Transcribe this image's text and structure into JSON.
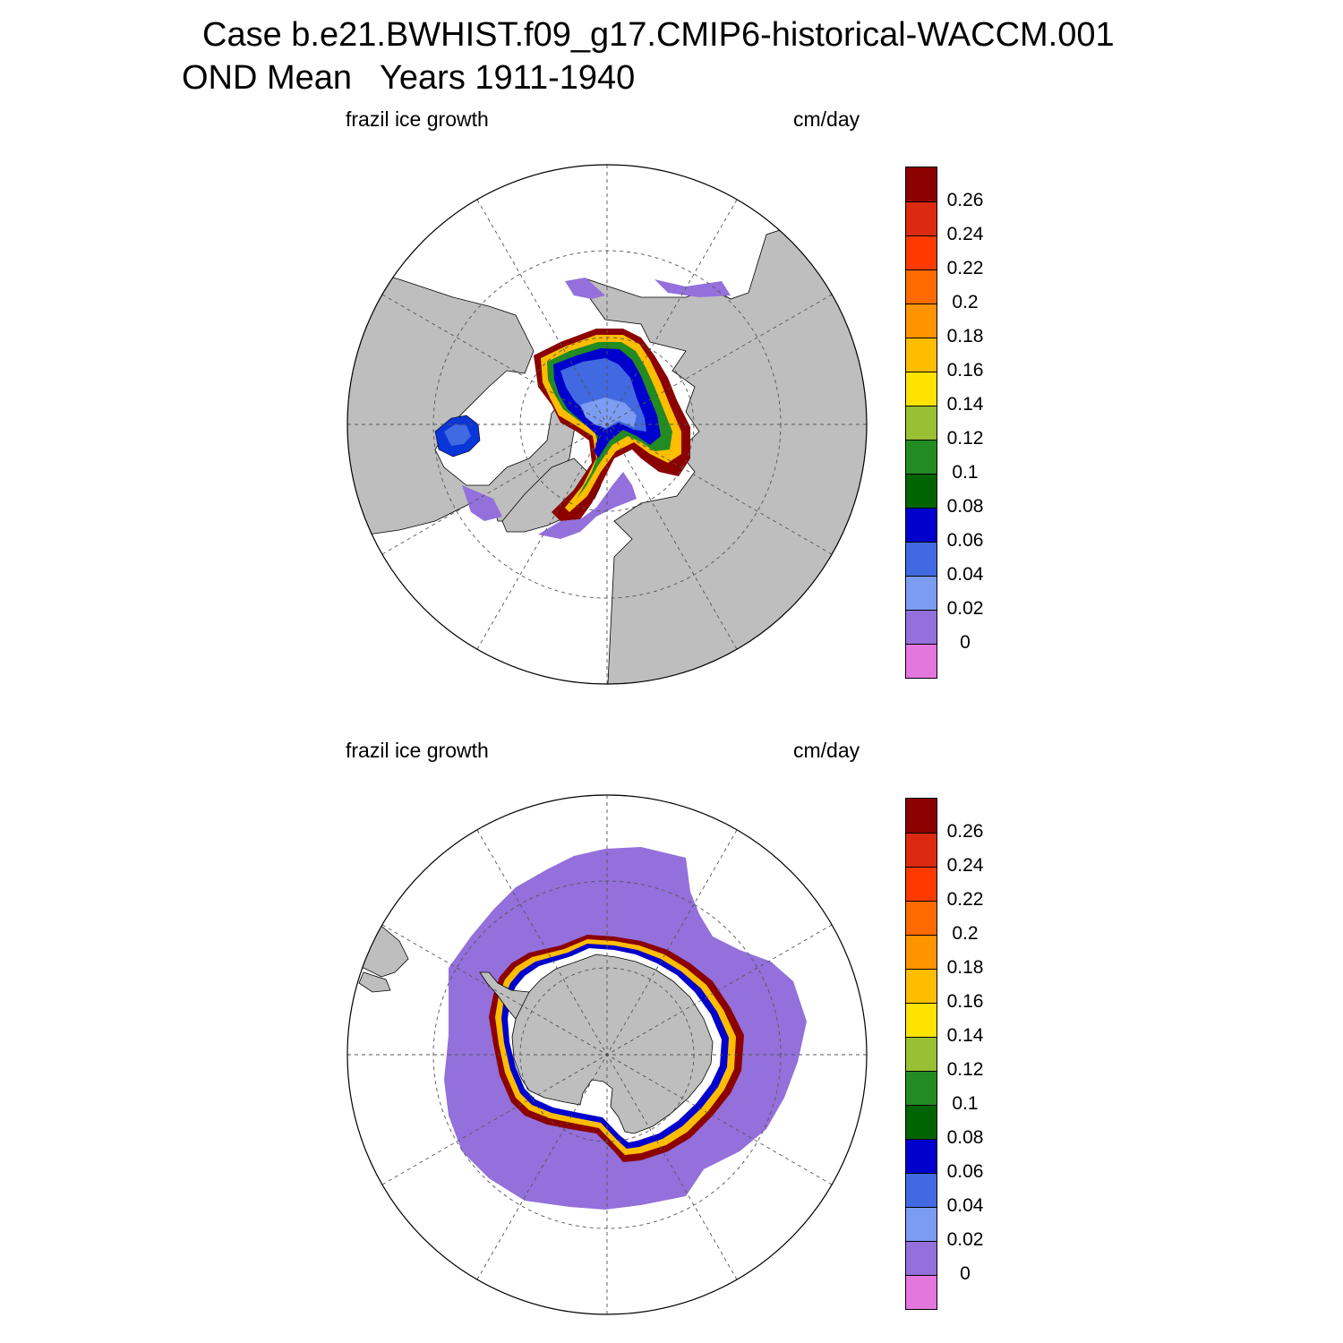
{
  "title": {
    "line1": "Case b.e21.BWHIST.f09_g17.CMIP6-historical-WACCM.001",
    "line2": "OND Mean   Years 1911-1940"
  },
  "panels": [
    {
      "id": "north",
      "left_label": "frazil ice growth",
      "right_label": "cm/day",
      "hemisphere": "Arctic"
    },
    {
      "id": "south",
      "left_label": "frazil ice growth",
      "right_label": "cm/day",
      "hemisphere": "Antarctic"
    }
  ],
  "colorbar": {
    "levels": [
      "0.26",
      "0.24",
      "0.22",
      "0.2",
      "0.18",
      "0.16",
      "0.14",
      "0.12",
      "0.1",
      "0.08",
      "0.06",
      "0.04",
      "0.02",
      "0"
    ],
    "colors": [
      "#8b0000",
      "#dc2a10",
      "#ff3a00",
      "#ff6a00",
      "#ff9300",
      "#ffbd00",
      "#ffe300",
      "#99bf33",
      "#228b22",
      "#006400",
      "#0000cd",
      "#4169e1",
      "#7b9cf0",
      "#9370db",
      "#e377dd"
    ]
  },
  "map_colors": {
    "land": "#bebebe",
    "ocean": "#ffffff",
    "grid": "#555555"
  }
}
